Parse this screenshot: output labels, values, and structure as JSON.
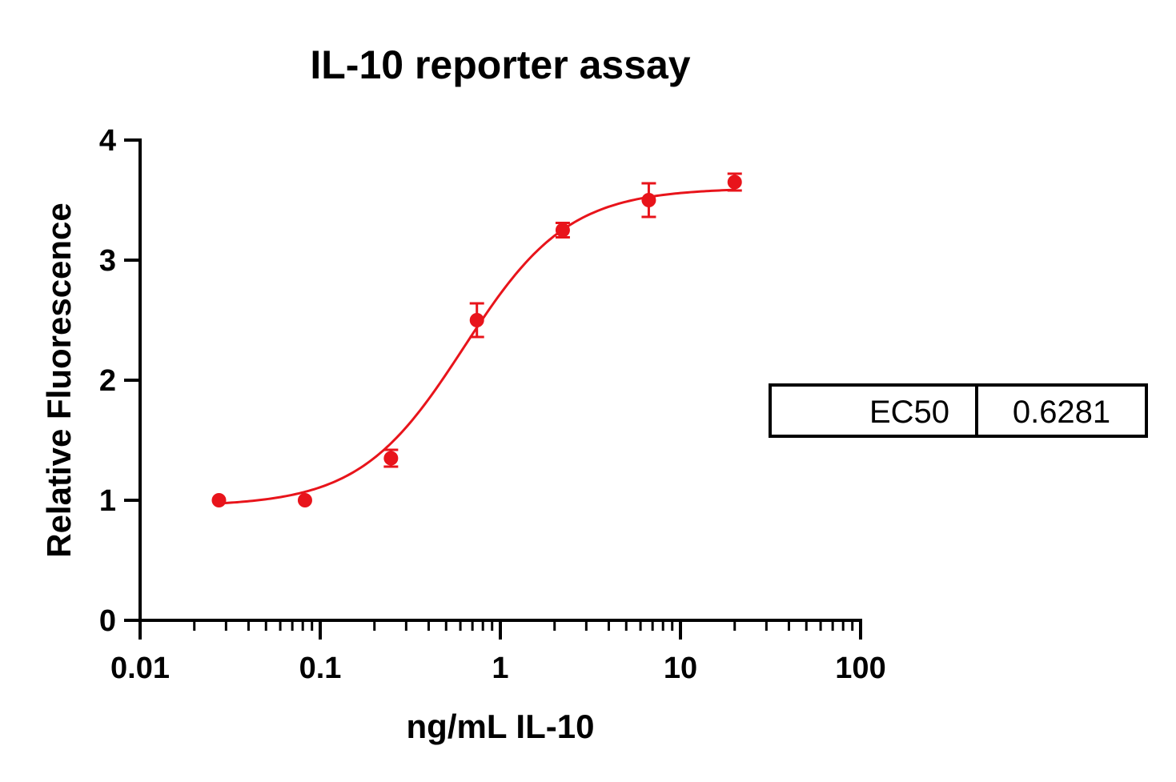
{
  "chart_data": {
    "type": "scatter",
    "title": "IL-10 reporter assay",
    "xlabel": "ng/mL IL-10",
    "ylabel": "Relative Fluorescence",
    "xscale": "log",
    "xlim": [
      0.01,
      100
    ],
    "ylim": [
      0,
      4
    ],
    "xticks": [
      0.01,
      0.1,
      1,
      10,
      100
    ],
    "xtick_labels": [
      "0.01",
      "0.1",
      "1",
      "10",
      "100"
    ],
    "yticks": [
      0,
      1,
      2,
      3,
      4
    ],
    "ytick_labels": [
      "0",
      "1",
      "2",
      "3",
      "4"
    ],
    "grid": false,
    "color": "#e8141b",
    "points": [
      {
        "x": 0.0274,
        "y": 1.0,
        "err": 0.0
      },
      {
        "x": 0.0823,
        "y": 1.0,
        "err": 0.0
      },
      {
        "x": 0.247,
        "y": 1.35,
        "err": 0.07
      },
      {
        "x": 0.741,
        "y": 2.5,
        "err": 0.14
      },
      {
        "x": 2.22,
        "y": 3.25,
        "err": 0.06
      },
      {
        "x": 6.67,
        "y": 3.5,
        "err": 0.14
      },
      {
        "x": 20.0,
        "y": 3.65,
        "err": 0.07
      }
    ],
    "fit": {
      "model": "4PL",
      "bottom": 0.95,
      "top": 3.6,
      "ec50": 0.6281,
      "hill": 1.5,
      "x_range": [
        0.0274,
        20.0
      ]
    },
    "table": {
      "label": "EC50",
      "value": "0.6281"
    }
  }
}
